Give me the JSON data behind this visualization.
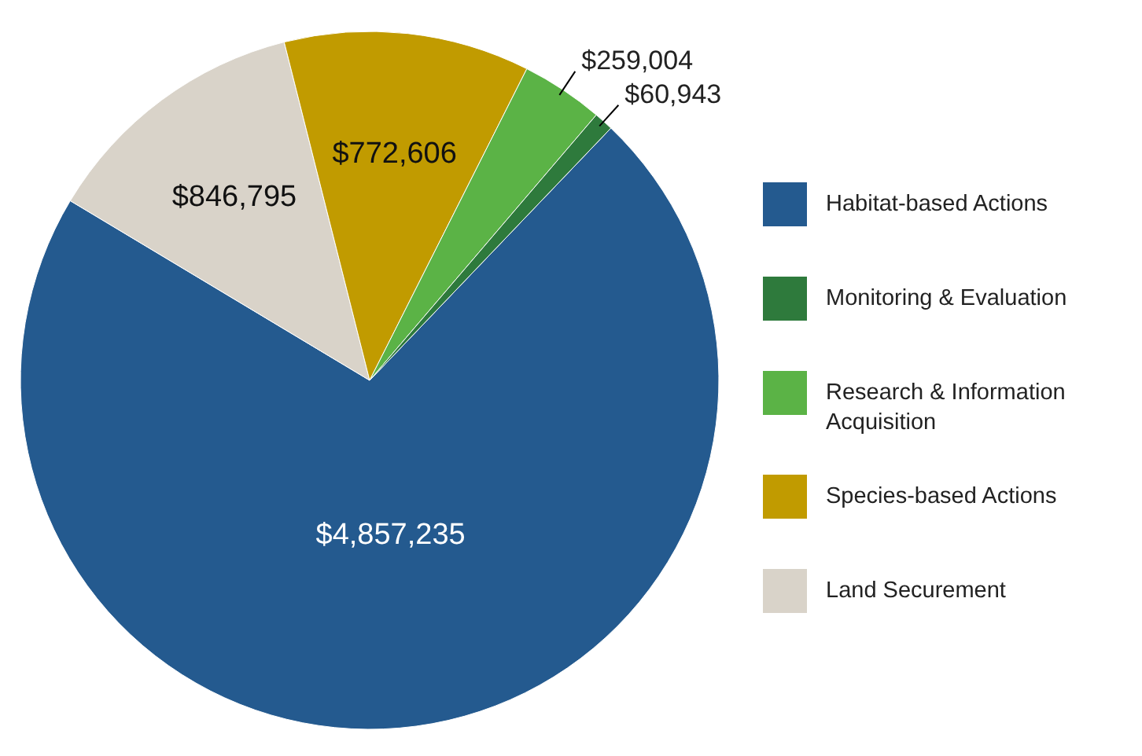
{
  "chart_data": {
    "type": "pie",
    "categories": [
      "Habitat-based Actions",
      "Monitoring & Evaluation",
      "Research & Information Acquisition",
      "Species-based Actions",
      "Land Securement"
    ],
    "values": [
      4857235,
      60943,
      259004,
      772606,
      846795
    ],
    "value_labels": [
      "$4,857,235",
      "$60,943",
      "$259,004",
      "$772,606",
      "$846,795"
    ],
    "colors": [
      "#245a8f",
      "#2e7a3c",
      "#5bb346",
      "#c19b00",
      "#d9d3c9"
    ],
    "legend": "right"
  }
}
